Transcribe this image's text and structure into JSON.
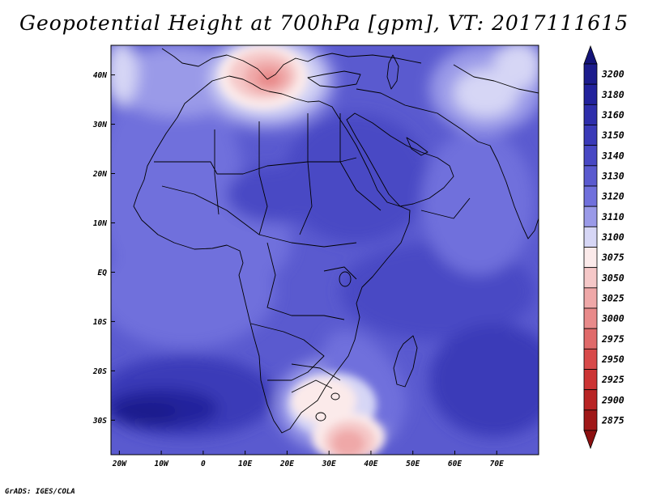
{
  "title": "Geopotential Height at 700hPa [gpm], VT: 2017111615",
  "credit": "GrADS: IGES/COLA",
  "map": {
    "lon_range": [
      -22,
      80
    ],
    "lat_range": [
      -37,
      46
    ],
    "lon_ticks": [
      {
        "value": -20,
        "label": "20W"
      },
      {
        "value": -10,
        "label": "10W"
      },
      {
        "value": 0,
        "label": "0"
      },
      {
        "value": 10,
        "label": "10E"
      },
      {
        "value": 20,
        "label": "20E"
      },
      {
        "value": 30,
        "label": "30E"
      },
      {
        "value": 40,
        "label": "40E"
      },
      {
        "value": 50,
        "label": "50E"
      },
      {
        "value": 60,
        "label": "60E"
      },
      {
        "value": 70,
        "label": "70E"
      }
    ],
    "lat_ticks": [
      {
        "value": 40,
        "label": "40N"
      },
      {
        "value": 30,
        "label": "30N"
      },
      {
        "value": 20,
        "label": "20N"
      },
      {
        "value": 10,
        "label": "10N"
      },
      {
        "value": 0,
        "label": "EQ"
      },
      {
        "value": -10,
        "label": "10S"
      },
      {
        "value": -20,
        "label": "20S"
      },
      {
        "value": -30,
        "label": "30S"
      }
    ]
  },
  "colorbar": {
    "levels": [
      {
        "label": "3200",
        "color": "#1c1c8c"
      },
      {
        "label": "3180",
        "color": "#22229c"
      },
      {
        "label": "3160",
        "color": "#2e2eab"
      },
      {
        "label": "3150",
        "color": "#3a3ab8"
      },
      {
        "label": "3140",
        "color": "#4848c4"
      },
      {
        "label": "3130",
        "color": "#5a5acf"
      },
      {
        "label": "3120",
        "color": "#7070dc"
      },
      {
        "label": "3110",
        "color": "#9a9ae8"
      },
      {
        "label": "3100",
        "color": "#d6d6f5"
      },
      {
        "label": "3075",
        "color": "#fbeaea"
      },
      {
        "label": "3050",
        "color": "#f5c8c8"
      },
      {
        "label": "3025",
        "color": "#efa8a8"
      },
      {
        "label": "3000",
        "color": "#e88a8a"
      },
      {
        "label": "2975",
        "color": "#e06a6a"
      },
      {
        "label": "2950",
        "color": "#d84a4a"
      },
      {
        "label": "2925",
        "color": "#cc3434"
      },
      {
        "label": "2900",
        "color": "#b82424"
      },
      {
        "label": "2875",
        "color": "#a01818"
      }
    ],
    "top_arrow_color": "#141478",
    "bottom_arrow_color": "#8c1010"
  }
}
